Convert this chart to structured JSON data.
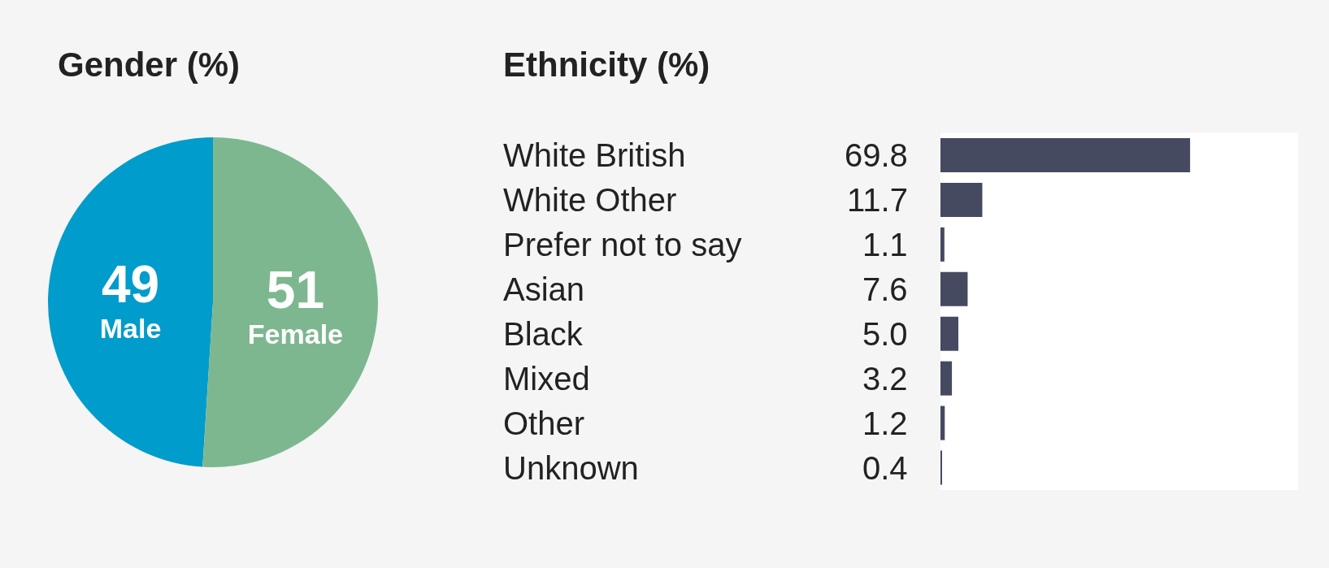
{
  "chart_data": [
    {
      "type": "pie",
      "title": "Gender (%)",
      "categories": [
        "Male",
        "Female"
      ],
      "values": [
        49,
        51
      ],
      "colors": [
        "#009ccb",
        "#7db790"
      ],
      "data_labels": true
    },
    {
      "type": "bar",
      "orientation": "horizontal",
      "title": "Ethnicity (%)",
      "categories": [
        "White British",
        "White Other",
        "Prefer not to say",
        "Asian",
        "Black",
        "Mixed",
        "Other",
        "Unknown"
      ],
      "values": [
        69.8,
        11.7,
        1.1,
        7.6,
        5.0,
        3.2,
        1.2,
        0.4
      ],
      "color": "#454a60",
      "value_labels": [
        "69.8",
        "11.7",
        "1.1",
        "7.6",
        "5.0",
        "3.2",
        "1.2",
        "0.4"
      ],
      "xlim": [
        0,
        100
      ],
      "tick_labels": "y"
    }
  ]
}
